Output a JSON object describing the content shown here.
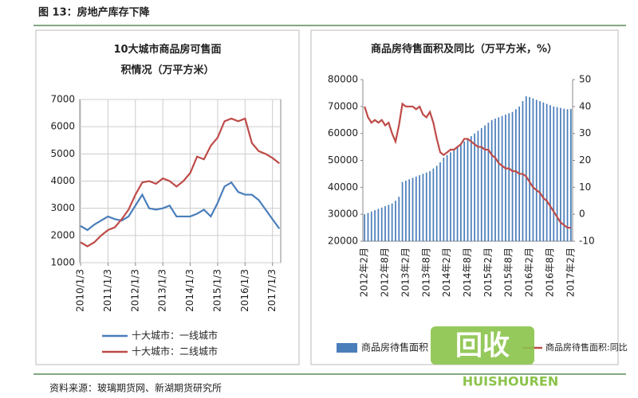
{
  "header": {
    "title": "图 13：房地产库存下降"
  },
  "source": "资料来源：玻璃期货网、新湖期货研究所",
  "watermark": {
    "logo": "回收",
    "brand": "HUISHOUREN"
  },
  "chart_data": [
    {
      "type": "line",
      "title": "10大城市商品房可售面积情况（万平方米）",
      "x": [
        2010,
        2010.25,
        2010.5,
        2010.75,
        2011,
        2011.25,
        2011.5,
        2011.75,
        2012,
        2012.25,
        2012.5,
        2012.75,
        2013,
        2013.25,
        2013.5,
        2013.75,
        2014,
        2014.25,
        2014.5,
        2014.75,
        2015,
        2015.25,
        2015.5,
        2015.75,
        2016,
        2016.25,
        2016.5,
        2016.75,
        2017,
        2017.25
      ],
      "xlim": [
        2009.97,
        2017.3
      ],
      "xticks": [
        {
          "value": 2010,
          "label": "2010/1/3"
        },
        {
          "value": 2011,
          "label": "2011/1/3"
        },
        {
          "value": 2012,
          "label": "2012/1/3"
        },
        {
          "value": 2013,
          "label": "2013/1/3"
        },
        {
          "value": 2014,
          "label": "2014/1/3"
        },
        {
          "value": 2015,
          "label": "2015/1/3"
        },
        {
          "value": 2016,
          "label": "2016/1/3"
        },
        {
          "value": 2017,
          "label": "2017/1/3"
        }
      ],
      "ylim": [
        1000,
        7000
      ],
      "yticks": [
        1000,
        2000,
        3000,
        4000,
        5000,
        6000,
        7000
      ],
      "grid": true,
      "series": [
        {
          "name": "十大城市：一线城市",
          "color": "#4a7ebb",
          "values": [
            2350,
            2200,
            2400,
            2550,
            2700,
            2600,
            2550,
            2700,
            3100,
            3500,
            3000,
            2950,
            3000,
            3100,
            2700,
            2700,
            2700,
            2800,
            2950,
            2700,
            3200,
            3800,
            3950,
            3600,
            3500,
            3500,
            3300,
            2950,
            2600,
            2250
          ]
        },
        {
          "name": "十大城市：二线城市",
          "color": "#be4b48",
          "values": [
            1750,
            1600,
            1750,
            2000,
            2200,
            2300,
            2600,
            2950,
            3500,
            3950,
            4000,
            3900,
            4100,
            4000,
            3800,
            4000,
            4300,
            4900,
            4800,
            5300,
            5600,
            6200,
            6300,
            6200,
            6300,
            5400,
            5100,
            5000,
            4850,
            4650
          ]
        }
      ]
    },
    {
      "type": "bar",
      "title": "商品房待售面积及同比（万平方米，%）",
      "categories": [
        "2012年2月",
        null,
        null,
        null,
        null,
        null,
        "2012年8月",
        null,
        null,
        null,
        null,
        null,
        "2013年2月",
        null,
        null,
        null,
        null,
        null,
        "2013年8月",
        null,
        null,
        null,
        null,
        null,
        "2014年2月",
        null,
        null,
        null,
        null,
        null,
        "2014年8月",
        null,
        null,
        null,
        null,
        null,
        "2015年2月",
        null,
        null,
        null,
        null,
        null,
        "2015年8月",
        null,
        null,
        null,
        null,
        null,
        "2016年2月",
        null,
        null,
        null,
        null,
        null,
        "2016年8月",
        null,
        null,
        null,
        null,
        null,
        "2017年2月"
      ],
      "ylim": [
        20000,
        80000
      ],
      "yticks": [
        20000,
        30000,
        40000,
        50000,
        60000,
        70000,
        80000
      ],
      "y2lim": [
        -10,
        50
      ],
      "y2ticks": [
        -10,
        0,
        10,
        20,
        30,
        40,
        50
      ],
      "series": [
        {
          "name": "商品房待售面积",
          "color": "#4a7ebb",
          "values": [
            30000,
            30500,
            31000,
            31500,
            32000,
            32500,
            33000,
            33500,
            34000,
            35000,
            36500,
            42000,
            42500,
            43000,
            43500,
            44000,
            44500,
            45000,
            45500,
            46000,
            47000,
            48000,
            49300,
            51000,
            52000,
            53000,
            54000,
            55000,
            56000,
            57000,
            58000,
            59000,
            60000,
            61000,
            62000,
            63000,
            64000,
            65000,
            65500,
            66000,
            66500,
            67000,
            67500,
            68000,
            69000,
            70000,
            72000,
            73800,
            73500,
            73000,
            72500,
            72000,
            71500,
            71000,
            70500,
            70000,
            69800,
            69500,
            69200,
            69000,
            69100
          ]
        },
        {
          "name": "商品房待售面积:同比",
          "color": "#be4b48",
          "axis": "y2",
          "type": "line",
          "values": [
            40,
            36,
            34,
            35,
            34,
            35,
            33,
            34,
            30,
            27,
            33,
            41,
            40,
            40,
            40,
            39,
            40,
            37,
            36,
            38,
            34,
            28,
            23,
            22,
            23,
            24,
            24,
            25,
            26,
            28,
            28,
            27,
            26,
            25,
            25,
            24,
            24,
            22,
            21,
            19,
            18,
            17,
            17,
            16,
            16,
            15,
            15,
            14,
            12,
            10,
            9,
            8,
            6,
            5,
            3,
            1,
            -1,
            -3,
            -4,
            -5,
            -5
          ]
        }
      ]
    }
  ]
}
